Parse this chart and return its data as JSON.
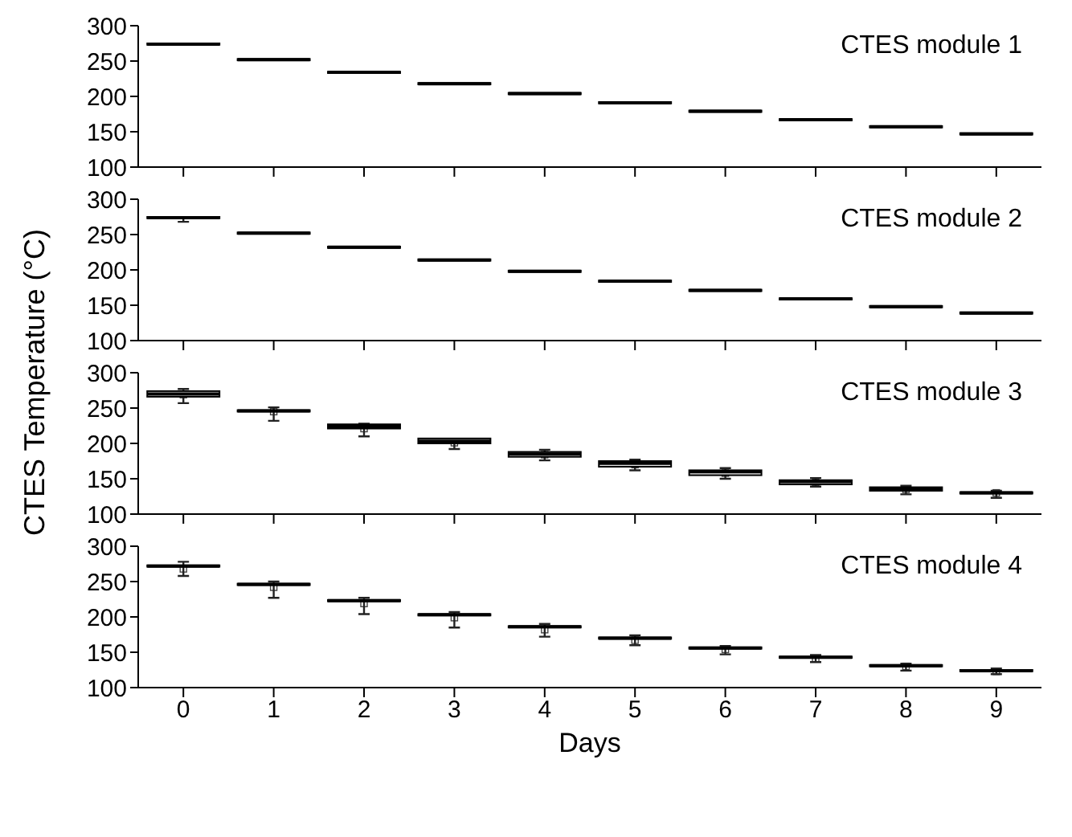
{
  "chart_data": [
    {
      "type": "box",
      "ylabel": "CTES Temperature (°C)",
      "annotations": [
        "CTES module 1"
      ],
      "categories": [
        "0",
        "1",
        "2",
        "3",
        "4",
        "5",
        "6",
        "7",
        "8",
        "9"
      ],
      "ylim": [
        100,
        300
      ],
      "yticks": [
        100,
        150,
        200,
        250,
        300
      ],
      "tick_labels": "y",
      "boxes": [
        {
          "low": 273,
          "q1": 273,
          "median": 274,
          "q3": 275,
          "high": 275
        },
        {
          "low": 251,
          "q1": 251,
          "median": 252,
          "q3": 253,
          "high": 253
        },
        {
          "low": 233,
          "q1": 233,
          "median": 234,
          "q3": 235,
          "high": 235
        },
        {
          "low": 217,
          "q1": 217,
          "median": 218,
          "q3": 219,
          "high": 219
        },
        {
          "low": 203,
          "q1": 203,
          "median": 204,
          "q3": 205,
          "high": 205
        },
        {
          "low": 190,
          "q1": 190,
          "median": 191,
          "q3": 192,
          "high": 192
        },
        {
          "low": 178,
          "q1": 178,
          "median": 179,
          "q3": 180,
          "high": 180
        },
        {
          "low": 166,
          "q1": 166,
          "median": 167,
          "q3": 168,
          "high": 168
        },
        {
          "low": 156,
          "q1": 156,
          "median": 157,
          "q3": 158,
          "high": 158
        },
        {
          "low": 146,
          "q1": 146,
          "median": 147,
          "q3": 148,
          "high": 148
        }
      ]
    },
    {
      "type": "box",
      "annotations": [
        "CTES module 2"
      ],
      "categories": [
        "0",
        "1",
        "2",
        "3",
        "4",
        "5",
        "6",
        "7",
        "8",
        "9"
      ],
      "ylim": [
        100,
        300
      ],
      "yticks": [
        100,
        150,
        200,
        250,
        300
      ],
      "tick_labels": "y",
      "boxes": [
        {
          "low": 268,
          "q1": 273,
          "median": 274,
          "q3": 275,
          "high": 275
        },
        {
          "low": 251,
          "q1": 251,
          "median": 252,
          "q3": 253,
          "high": 253
        },
        {
          "low": 231,
          "q1": 231,
          "median": 232,
          "q3": 233,
          "high": 233
        },
        {
          "low": 213,
          "q1": 213,
          "median": 214,
          "q3": 215,
          "high": 215
        },
        {
          "low": 197,
          "q1": 197,
          "median": 198,
          "q3": 199,
          "high": 199
        },
        {
          "low": 183,
          "q1": 183,
          "median": 184,
          "q3": 185,
          "high": 185
        },
        {
          "low": 170,
          "q1": 170,
          "median": 171,
          "q3": 172,
          "high": 172
        },
        {
          "low": 158,
          "q1": 158,
          "median": 159,
          "q3": 160,
          "high": 160
        },
        {
          "low": 147,
          "q1": 147,
          "median": 148,
          "q3": 149,
          "high": 149
        },
        {
          "low": 138,
          "q1": 138,
          "median": 139,
          "q3": 140,
          "high": 140
        }
      ]
    },
    {
      "type": "box",
      "annotations": [
        "CTES module 3"
      ],
      "categories": [
        "0",
        "1",
        "2",
        "3",
        "4",
        "5",
        "6",
        "7",
        "8",
        "9"
      ],
      "ylim": [
        100,
        300
      ],
      "yticks": [
        100,
        150,
        200,
        250,
        300
      ],
      "tick_labels": "y",
      "boxes": [
        {
          "low": 257,
          "q1": 266,
          "median": 270,
          "q3": 274,
          "high": 277,
          "mean": 269
        },
        {
          "low": 232,
          "q1": 245,
          "median": 246,
          "q3": 247,
          "high": 251,
          "mean": 245
        },
        {
          "low": 210,
          "q1": 221,
          "median": 224,
          "q3": 227,
          "high": 228,
          "mean": 221
        },
        {
          "low": 192,
          "q1": 200,
          "median": 203,
          "q3": 207,
          "high": 207,
          "mean": 201
        },
        {
          "low": 176,
          "q1": 181,
          "median": 185,
          "q3": 188,
          "high": 191,
          "mean": 184
        },
        {
          "low": 162,
          "q1": 167,
          "median": 172,
          "q3": 175,
          "high": 177,
          "mean": 170
        },
        {
          "low": 150,
          "q1": 155,
          "median": 160,
          "q3": 162,
          "high": 165,
          "mean": 158
        },
        {
          "low": 139,
          "q1": 142,
          "median": 146,
          "q3": 148,
          "high": 151,
          "mean": 145
        },
        {
          "low": 128,
          "q1": 133,
          "median": 136,
          "q3": 138,
          "high": 140,
          "mean": 135
        },
        {
          "low": 123,
          "q1": 129,
          "median": 130,
          "q3": 131,
          "high": 133,
          "mean": 130
        }
      ]
    },
    {
      "type": "box",
      "xlabel": "Days",
      "annotations": [
        "CTES module 4"
      ],
      "categories": [
        "0",
        "1",
        "2",
        "3",
        "4",
        "5",
        "6",
        "7",
        "8",
        "9"
      ],
      "ylim": [
        100,
        300
      ],
      "yticks": [
        100,
        150,
        200,
        250,
        300
      ],
      "boxes": [
        {
          "low": 258,
          "q1": 271,
          "median": 272,
          "q3": 273,
          "high": 278,
          "mean": 268
        },
        {
          "low": 227,
          "q1": 245,
          "median": 246,
          "q3": 247,
          "high": 250,
          "mean": 242
        },
        {
          "low": 204,
          "q1": 222,
          "median": 223,
          "q3": 224,
          "high": 227,
          "mean": 219
        },
        {
          "low": 185,
          "q1": 202,
          "median": 203,
          "q3": 204,
          "high": 207,
          "mean": 199
        },
        {
          "low": 172,
          "q1": 185,
          "median": 186,
          "q3": 187,
          "high": 190,
          "mean": 182
        },
        {
          "low": 160,
          "q1": 169,
          "median": 170,
          "q3": 171,
          "high": 174,
          "mean": 167
        },
        {
          "low": 147,
          "q1": 155,
          "median": 156,
          "q3": 157,
          "high": 159,
          "mean": 154
        },
        {
          "low": 136,
          "q1": 142,
          "median": 143,
          "q3": 144,
          "high": 146,
          "mean": 141
        },
        {
          "low": 124,
          "q1": 130,
          "median": 131,
          "q3": 132,
          "high": 134,
          "mean": 130
        },
        {
          "low": 119,
          "q1": 123,
          "median": 124,
          "q3": 125,
          "high": 127,
          "mean": 123
        }
      ]
    }
  ]
}
